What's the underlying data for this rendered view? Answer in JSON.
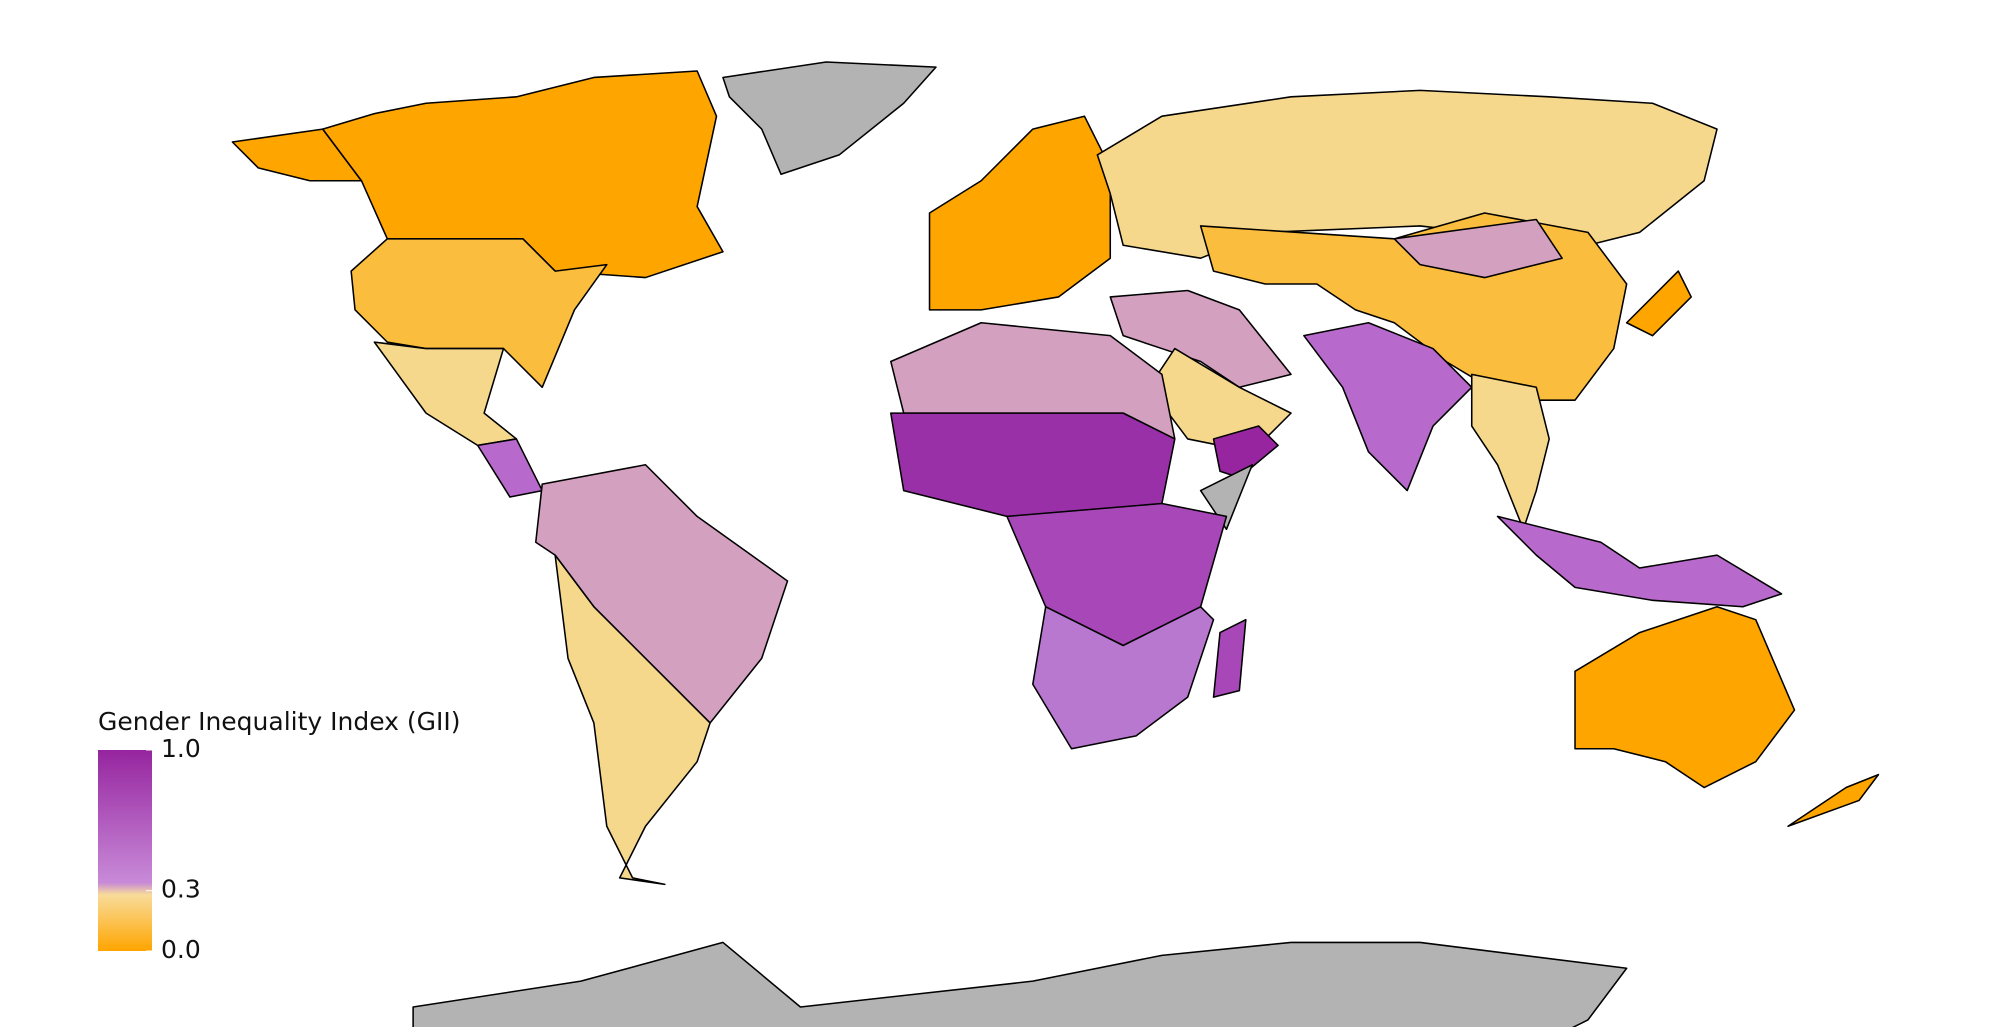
{
  "legend": {
    "title": "Gender Inequality Index (GII)",
    "ticks": [
      {
        "value": 1,
        "label": "1.0"
      },
      0.3,
      {
        "value": 0,
        "label": "0.0"
      }
    ]
  }
}
